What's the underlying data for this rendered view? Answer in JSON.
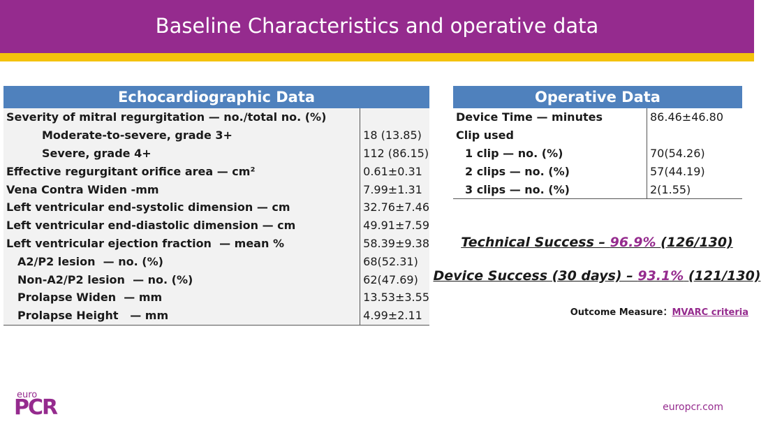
{
  "header": {
    "title": "Baseline Characteristics and operative data"
  },
  "echo_table": {
    "title": "Echocardiographic Data",
    "rows": [
      {
        "label": "Severity of mitral regurgitation — no./total no. (%)"
      },
      {
        "label": "Moderate-to-severe, grade 3+",
        "value": "18 (13.85)"
      },
      {
        "label": "Severe, grade 4+",
        "value": "112 (86.15)"
      },
      {
        "label": "Effective regurgitant orifice area — cm²",
        "value": "0.61±0.31"
      },
      {
        "label": "Vena Contra Widen -mm",
        "value": "7.99±1.31"
      },
      {
        "label": "Left ventricular end-systolic dimension — cm",
        "value": "32.76±7.46"
      },
      {
        "label": "Left ventricular end-diastolic dimension — cm",
        "value": "49.91±7.59"
      },
      {
        "label": "Left ventricular ejection fraction  — mean %",
        "value": "58.39±9.38"
      },
      {
        "label": "A2/P2 lesion  — no. (%)",
        "value": "68(52.31)"
      },
      {
        "label": "Non-A2/P2 lesion  — no. (%)",
        "value": "62(47.69)"
      },
      {
        "label": "Prolapse Widen  — mm",
        "value": "13.53±3.55"
      },
      {
        "label": "Prolapse Height   — mm",
        "value": "4.99±2.11"
      }
    ]
  },
  "operative_table": {
    "title": "Operative Data",
    "rows": [
      {
        "label": "Device Time — minutes",
        "value": "86.46±46.80"
      },
      {
        "label": "Clip used"
      },
      {
        "label": "1 clip — no. (%)",
        "value": "70(54.26)"
      },
      {
        "label": "2 clips — no. (%)",
        "value": "57(44.19)"
      },
      {
        "label": "3 clips — no. (%)",
        "value": "2(1.55)"
      }
    ]
  },
  "results": [
    {
      "label": "Technical Success – ",
      "percent": "96.9%",
      "count": " (126/130)"
    },
    {
      "label": "Device Success (30 days) – ",
      "percent": "93.1%",
      "count": " (121/130)"
    }
  ],
  "outcome": {
    "label": "Outcome Measure：",
    "link": "MVARC criteria"
  },
  "logo": {
    "top": "euro",
    "main": "PCR"
  },
  "footer": {
    "url": "europcr.com"
  }
}
